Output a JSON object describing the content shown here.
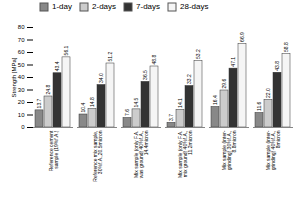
{
  "chart_data": {
    "type": "bar",
    "categories": [
      "Reference cement\nsample (19%f.A.)",
      "Reference mix sample,\n30%f.A.,20.5micron",
      "Mix sample (only F.A.\nwas ground) 40%f.A.,\n14.4micron",
      "Mix sample (only F.A.\nmix ground) 40%f.A.,\n11.2micron",
      "Mix sample (inter-\ngrinding) 30%f.A.,\n8.8micron",
      "Mix sample (inter-\ngrinding) 40%f.A.,\n8micron"
    ],
    "series": [
      {
        "name": "1-day",
        "color": "#888888",
        "values": [
          13.7,
          10.4,
          7.6,
          3.7,
          16.4,
          11.6
        ],
        "value_labels": [
          "13.7",
          "10.4",
          "7.6",
          "3.7",
          "16.4",
          "11.6"
        ]
      },
      {
        "name": "2-days",
        "color": "#cccccc",
        "values": [
          24.8,
          14.8,
          14.5,
          14.1,
          29.6,
          22.0
        ],
        "value_labels": [
          "24.8",
          "14.8",
          "14.5",
          "14.1",
          "29.6",
          "22.0"
        ]
      },
      {
        "name": "7-days",
        "color": "#333333",
        "values": [
          43.4,
          34.0,
          36.5,
          33.2,
          47.1,
          43.8
        ],
        "value_labels": [
          "43.4",
          "34.0",
          "36.5",
          "33.2",
          "47.1",
          "43.8"
        ]
      },
      {
        "name": "28-days",
        "color": "#f5f5f5",
        "values": [
          56.1,
          51.2,
          48.8,
          53.2,
          66.9,
          58.8
        ],
        "value_labels": [
          "56.1",
          "51.2",
          "48.8",
          "53.2",
          "66.9",
          "58.8"
        ]
      }
    ],
    "ylabel": "Strength [MPa]",
    "ylim": [
      0,
      80
    ],
    "yticks": [
      0,
      10,
      20,
      30,
      40,
      50,
      60,
      70,
      80
    ],
    "legend": "upper center",
    "data_labels": true,
    "grid": false
  }
}
